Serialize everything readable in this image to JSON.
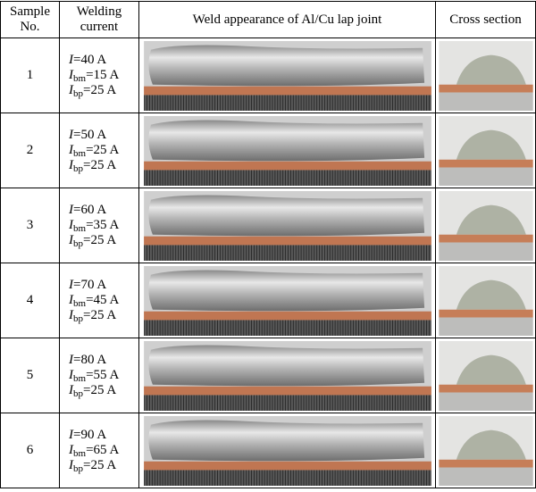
{
  "header": [
    "Sample No.",
    "Welding current",
    "Weld appearance of Al/Cu lap joint",
    "Cross section"
  ],
  "rows": [
    {
      "sample": "1",
      "current": [
        {
          "symbol": "I",
          "value": "=40 A"
        },
        {
          "symbol": "I",
          "sub": "bm",
          "value": "=15 A"
        },
        {
          "symbol": "I",
          "sub": "bp",
          "value": "=25 A"
        }
      ]
    },
    {
      "sample": "2",
      "current": [
        {
          "symbol": "I",
          "value": "=50 A"
        },
        {
          "symbol": "I",
          "sub": "bm",
          "value": "=25 A"
        },
        {
          "symbol": "I",
          "sub": "bp",
          "value": "=25 A"
        }
      ]
    },
    {
      "sample": "3",
      "current": [
        {
          "symbol": "I",
          "value": "=60 A"
        },
        {
          "symbol": "I",
          "sub": "bm",
          "value": "=35 A"
        },
        {
          "symbol": "I",
          "sub": "bp",
          "value": "=25 A"
        }
      ]
    },
    {
      "sample": "4",
      "current": [
        {
          "symbol": "I",
          "value": "=70 A"
        },
        {
          "symbol": "I",
          "sub": "bm",
          "value": "=45 A"
        },
        {
          "symbol": "I",
          "sub": "bp",
          "value": "=25 A"
        }
      ]
    },
    {
      "sample": "5",
      "current": [
        {
          "symbol": "I",
          "value": "=80 A"
        },
        {
          "symbol": "I",
          "sub": "bm",
          "value": "=55 A"
        },
        {
          "symbol": "I",
          "sub": "bp",
          "value": "=25 A"
        }
      ]
    },
    {
      "sample": "6",
      "current": [
        {
          "symbol": "I",
          "value": "=90 A"
        },
        {
          "symbol": "I",
          "sub": "bm",
          "value": "=65 A"
        },
        {
          "symbol": "I",
          "sub": "bp",
          "value": "=25 A"
        }
      ]
    }
  ]
}
